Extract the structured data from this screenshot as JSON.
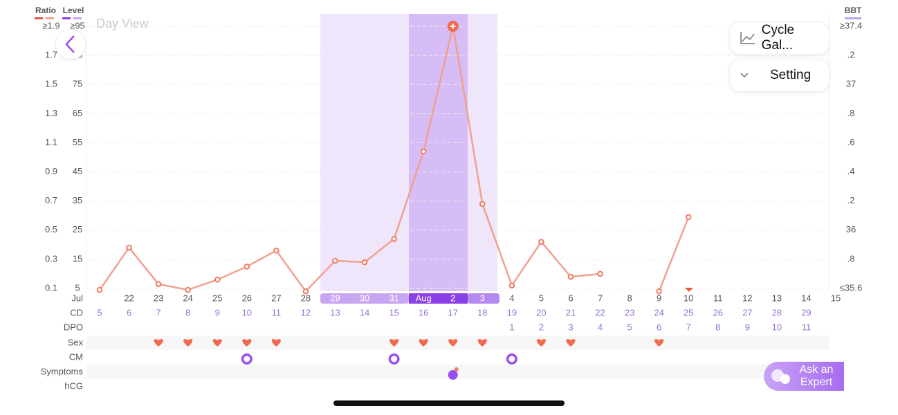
{
  "chart_data": {
    "type": "line",
    "title": "Day View",
    "legend": [
      "Ratio",
      "Level",
      "BBT"
    ],
    "categories": [
      null,
      "22",
      "23",
      "24",
      "25",
      "26",
      "27",
      "28",
      "29",
      "30",
      "31",
      "Aug",
      "2",
      "3",
      "4",
      "5",
      "6",
      "7",
      "8",
      "9",
      "10",
      "11",
      "12",
      "13",
      "14",
      "15"
    ],
    "month_label": "Jul",
    "series": [
      {
        "name": "Ratio",
        "color": "#f2a08f",
        "values": [
          0.09,
          0.38,
          0.13,
          0.09,
          0.16,
          0.25,
          0.36,
          0.08,
          0.29,
          0.28,
          0.44,
          1.04,
          1.9,
          0.68,
          0.12,
          0.42,
          0.18,
          0.2,
          null,
          0.08,
          0.59,
          null,
          null,
          null,
          null,
          null
        ]
      }
    ],
    "ylim": [
      0.1,
      1.9
    ],
    "yticks": [
      0.1,
      0.3,
      0.5,
      0.7,
      0.9,
      1.1,
      1.3,
      1.5,
      1.7,
      {
        "value": 1.9,
        "label": "≥1.9"
      }
    ],
    "y2lim": [
      5,
      95
    ],
    "y2ticks": [
      5,
      15,
      25,
      35,
      45,
      55,
      65,
      75,
      85,
      {
        "value": 95,
        "label": "≥95"
      }
    ],
    "y3lim": [
      35.6,
      37.4
    ],
    "y3ticks": [
      {
        "value": 35.6,
        "label": "≤35.6"
      },
      {
        "value": 35.8,
        "label": ".8"
      },
      36,
      {
        "value": 36.2,
        "label": ".2"
      },
      {
        "value": 36.4,
        "label": ".4"
      },
      {
        "value": 36.6,
        "label": ".6"
      },
      {
        "value": 36.8,
        "label": ".8"
      },
      37,
      {
        "value": 37.2,
        "label": ".2"
      },
      {
        "value": 37.4,
        "label": "≥37.4"
      }
    ],
    "grid": true
  },
  "rows": {
    "labels": [
      "CD",
      "DPO",
      "Sex",
      "CM",
      "Symptoms",
      "hCG"
    ],
    "cd": [
      5,
      6,
      7,
      8,
      9,
      10,
      11,
      12,
      13,
      14,
      15,
      16,
      17,
      18,
      19,
      20,
      21,
      22,
      23,
      24,
      25,
      26,
      27,
      28,
      29,
      null
    ],
    "dpo": [
      null,
      null,
      null,
      null,
      null,
      null,
      null,
      null,
      null,
      null,
      null,
      null,
      null,
      null,
      1,
      2,
      3,
      4,
      5,
      6,
      7,
      8,
      9,
      10,
      11,
      null
    ],
    "sex": [
      false,
      false,
      true,
      true,
      true,
      true,
      true,
      false,
      false,
      false,
      true,
      true,
      true,
      true,
      false,
      true,
      true,
      false,
      false,
      true,
      false,
      false,
      false,
      false,
      false,
      false
    ],
    "cm": [
      false,
      false,
      false,
      false,
      false,
      true,
      false,
      false,
      false,
      false,
      true,
      false,
      false,
      false,
      true,
      false,
      false,
      false,
      false,
      false,
      false,
      false,
      false,
      false,
      false,
      false
    ],
    "symptoms": [
      false,
      false,
      false,
      false,
      false,
      false,
      false,
      false,
      false,
      false,
      false,
      false,
      true,
      false,
      false,
      false,
      false,
      false,
      false,
      false,
      false,
      false,
      false,
      false,
      false,
      false
    ]
  },
  "buttons": {
    "cycle": "Cycle Gal...",
    "setting": "Setting",
    "expert": "Ask an Expert"
  }
}
